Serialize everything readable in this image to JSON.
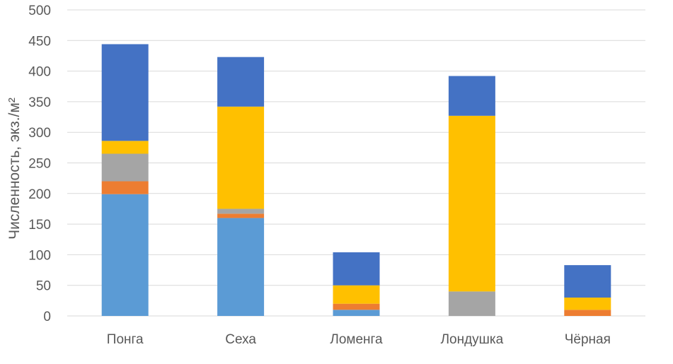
{
  "chart_data": {
    "type": "bar",
    "stacked": true,
    "title": "",
    "xlabel": "",
    "ylabel": "Численность, экз./м²",
    "ylim": [
      0,
      500
    ],
    "yticks": [
      0,
      50,
      100,
      150,
      200,
      250,
      300,
      350,
      400,
      450,
      500
    ],
    "grid": true,
    "categories": [
      "Понга",
      "Сеха",
      "Ломенга",
      "Лондушка",
      "Чёрная"
    ],
    "series": [
      {
        "color": "#5b9bd5",
        "values": [
          199,
          160,
          10,
          0,
          0
        ]
      },
      {
        "color": "#ed7d31",
        "values": [
          21,
          7,
          10,
          0,
          10
        ]
      },
      {
        "color": "#a5a5a5",
        "values": [
          45,
          8,
          0,
          40,
          0
        ]
      },
      {
        "color": "#ffc000",
        "values": [
          21,
          167,
          30,
          287,
          20
        ]
      },
      {
        "color": "#4472c4",
        "values": [
          158,
          81,
          54,
          65,
          53
        ]
      }
    ]
  }
}
